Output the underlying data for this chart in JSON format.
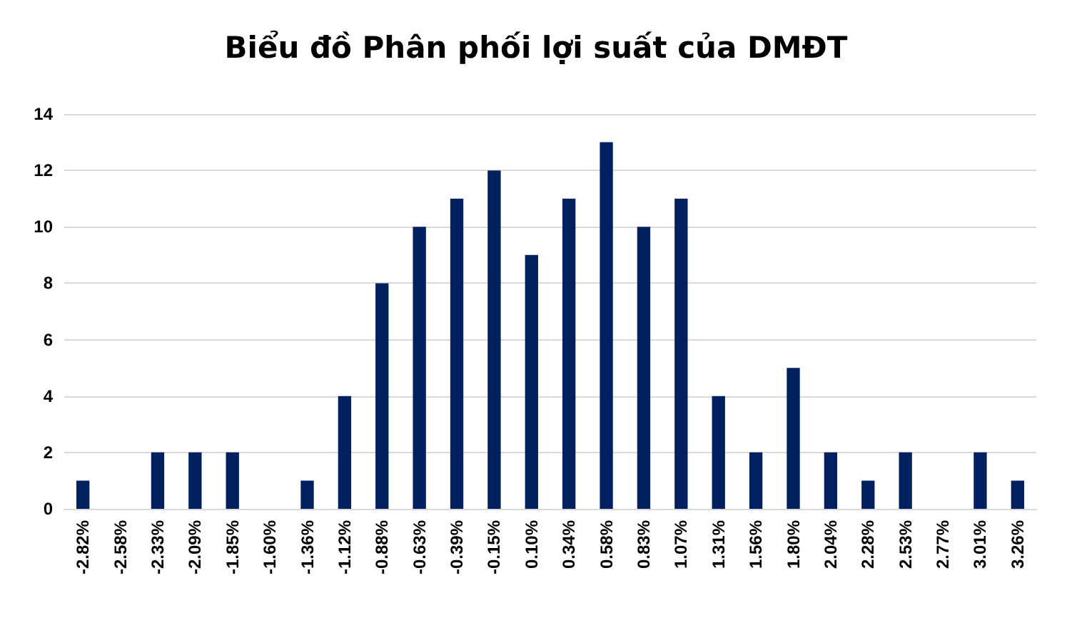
{
  "chart_data": {
    "type": "bar",
    "title": "Biểu đồ Phân phối lợi suất của DMĐT",
    "categories": [
      "-2.82%",
      "-2.58%",
      "-2.33%",
      "-2.09%",
      "-1.85%",
      "-1.60%",
      "-1.36%",
      "-1.12%",
      "-0.88%",
      "-0.63%",
      "-0.39%",
      "-0.15%",
      "0.10%",
      "0.34%",
      "0.58%",
      "0.83%",
      "1.07%",
      "1.31%",
      "1.56%",
      "1.80%",
      "2.04%",
      "2.28%",
      "2.53%",
      "2.77%",
      "3.01%",
      "3.26%"
    ],
    "values": [
      1,
      0,
      2,
      2,
      2,
      0,
      1,
      4,
      8,
      10,
      11,
      12,
      9,
      11,
      13,
      10,
      11,
      4,
      2,
      5,
      2,
      1,
      2,
      0,
      2,
      1
    ],
    "color": "#002060",
    "ylim": [
      0,
      14
    ],
    "yticks": [
      0,
      2,
      4,
      6,
      8,
      10,
      12,
      14
    ],
    "grid": "y"
  }
}
